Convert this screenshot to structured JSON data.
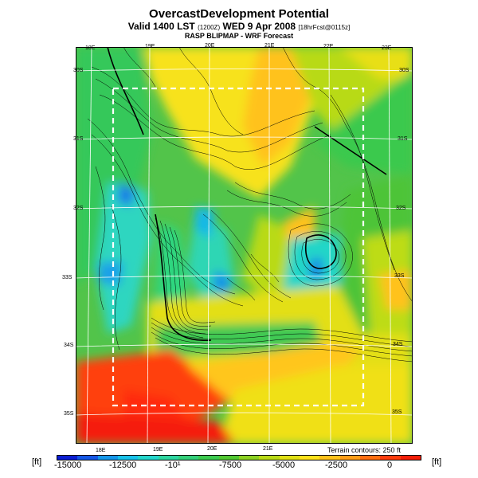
{
  "header": {
    "title": "OvercastDevelopment Potential",
    "valid_main": "Valid 1400 LST",
    "valid_zulu": "(1200Z)",
    "valid_date": "WED 9 Apr 2008",
    "valid_fcst": "[18hrFcst@0115z]",
    "subtitle": "RASP BLIPMAP - WRF Forecast"
  },
  "map": {
    "top_lon_labels": [
      "18E",
      "19E",
      "20E",
      "21E",
      "22E",
      "23E"
    ],
    "bottom_lon_labels": [
      "18E",
      "19E",
      "20E",
      "21E"
    ],
    "left_lat_labels": [
      "30S",
      "31S",
      "32S",
      "33S",
      "34S",
      "35S"
    ],
    "right_lat_labels": [
      "30S",
      "31S",
      "32S",
      "33S",
      "34S",
      "35S"
    ],
    "terrain_note": "Terrain contours: 250 ft"
  },
  "colorbar": {
    "unit": "[ft]",
    "tick_labels": [
      "-15000",
      "-12500",
      "-10¹",
      "-7500",
      "-5000",
      "-2500",
      "0"
    ],
    "colors": [
      "#0b1ed2",
      "#1457e6",
      "#1597ea",
      "#18c2ea",
      "#23d6cc",
      "#2ed6a0",
      "#34d07a",
      "#3ccb4f",
      "#52c832",
      "#8cd122",
      "#b9da16",
      "#e0e014",
      "#ffe21a",
      "#ffc21a",
      "#ff9d16",
      "#ff6e10",
      "#ff3c0c",
      "#f41e08"
    ]
  }
}
